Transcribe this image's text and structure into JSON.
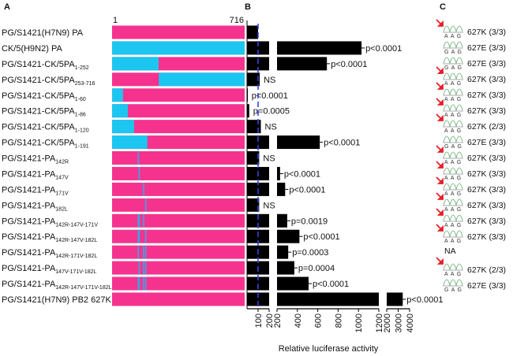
{
  "panels": {
    "a": "A",
    "b": "B",
    "c": "C"
  },
  "colors": {
    "h7n9": "#f5338f",
    "h9n2": "#1cc6f0",
    "mutation": "#4a9be0",
    "bar": "#000000",
    "reference_line": "#3344dd",
    "arrow": "#e8202a"
  },
  "chart_data": {
    "type": "bar",
    "orientation": "horizontal",
    "construct_axis": {
      "start_label": "1",
      "end_label": "716",
      "start": 1,
      "end": 716
    },
    "rows": [
      {
        "label": "PG/S1421(H7N9) PA",
        "sub": "",
        "cyan": [],
        "mutations": [],
        "value": 100,
        "p": ""
      },
      {
        "label": "CK/5(H9N2) PA",
        "sub": "",
        "cyan": [
          [
            1,
            716
          ]
        ],
        "mutations": [],
        "value": 1030,
        "p": "p<0.0001"
      },
      {
        "label": "PG/S1421-CK/5PA",
        "sub": "1-252",
        "cyan": [
          [
            1,
            252
          ]
        ],
        "mutations": [],
        "value": 690,
        "p": "p<0.0001"
      },
      {
        "label": "PG/S1421-CK/5PA",
        "sub": "253-716",
        "cyan": [
          [
            253,
            716
          ]
        ],
        "mutations": [],
        "value": 115,
        "p": "NS"
      },
      {
        "label": "PG/S1421-CK/5PA",
        "sub": "1-60",
        "cyan": [
          [
            1,
            60
          ]
        ],
        "mutations": [],
        "value": 5,
        "p": "p<0.0001"
      },
      {
        "label": "PG/S1421-CK/5PA",
        "sub": "1-86",
        "cyan": [
          [
            1,
            86
          ]
        ],
        "mutations": [],
        "value": 20,
        "p": "p=0.0005"
      },
      {
        "label": "PG/S1421-CK/5PA",
        "sub": "1-120",
        "cyan": [
          [
            1,
            120
          ]
        ],
        "mutations": [],
        "value": 125,
        "p": "NS"
      },
      {
        "label": "PG/S1421-CK/5PA",
        "sub": "1-191",
        "cyan": [
          [
            1,
            191
          ]
        ],
        "mutations": [],
        "value": 620,
        "p": "p<0.0001"
      },
      {
        "label": "PG/S1421-PA",
        "sub": "142R",
        "cyan": [],
        "mutations": [
          142
        ],
        "value": 110,
        "p": "NS"
      },
      {
        "label": "PG/S1421-PA",
        "sub": "147V",
        "cyan": [],
        "mutations": [
          147
        ],
        "value": 230,
        "p": "p<0.0001"
      },
      {
        "label": "PG/S1421-PA",
        "sub": "171V",
        "cyan": [],
        "mutations": [
          171
        ],
        "value": 280,
        "p": "p<0.0001"
      },
      {
        "label": "PG/S1421-PA",
        "sub": "182L",
        "cyan": [],
        "mutations": [
          182
        ],
        "value": 110,
        "p": "NS"
      },
      {
        "label": "PG/S1421-PA",
        "sub": "142R-147V-171V",
        "cyan": [],
        "mutations": [
          142,
          147,
          171
        ],
        "value": 300,
        "p": "p=0.0019"
      },
      {
        "label": "PG/S1421-PA",
        "sub": "142R-147V-182L",
        "cyan": [],
        "mutations": [
          142,
          147,
          182
        ],
        "value": 420,
        "p": "p<0.0001"
      },
      {
        "label": "PG/S1421-PA",
        "sub": "142R-171V-182L",
        "cyan": [],
        "mutations": [
          142,
          171,
          182
        ],
        "value": 310,
        "p": "p=0.0003"
      },
      {
        "label": "PG/S1421-PA",
        "sub": "147V-171V-182L",
        "cyan": [],
        "mutations": [
          147,
          171,
          182
        ],
        "value": 370,
        "p": "p=0.0004"
      },
      {
        "label": "PG/S1421-PA",
        "sub": "142R-147V-171V-182L",
        "cyan": [],
        "mutations": [
          142,
          147,
          171,
          182
        ],
        "value": 510,
        "p": "p<0.0001"
      },
      {
        "label": "PG/S1421(H7N9) PB2 627K",
        "sub": "",
        "cyan": [],
        "mutations": [],
        "value": 3400,
        "p": "p<0.0001"
      }
    ],
    "x_segments": [
      {
        "range": [
          0,
          200
        ],
        "ticks": [
          "100",
          "200"
        ]
      },
      {
        "range": [
          200,
          1200
        ],
        "ticks": [
          "200",
          "400",
          "600",
          "800",
          "1000",
          "1200"
        ]
      },
      {
        "range": [
          2000,
          4000
        ],
        "ticks": [
          "2000",
          "3000",
          "4000"
        ]
      }
    ],
    "reference_value": 100,
    "xlabel": "Relative luciferase activity"
  },
  "sequencing": [
    {
      "codon": "AAG",
      "arrow": true,
      "label": "627K (3/3)"
    },
    {
      "codon": "GAG",
      "arrow": false,
      "label": "627E (3/3)"
    },
    {
      "codon": "GAG",
      "arrow": false,
      "label": "627E (3/3)"
    },
    {
      "codon": "AAG",
      "arrow": true,
      "label": "627K (3/3)"
    },
    {
      "codon": "AAG",
      "arrow": true,
      "label": "627K (3/3)"
    },
    {
      "codon": "AAG",
      "arrow": true,
      "label": "627K (3/3)"
    },
    {
      "codon": "AAG",
      "arrow": true,
      "label": "627K (2/3)"
    },
    {
      "codon": "GAG",
      "arrow": false,
      "label": "627E (3/3)"
    },
    {
      "codon": "AAG",
      "arrow": true,
      "label": "627K (3/3)"
    },
    {
      "codon": "AAG",
      "arrow": true,
      "label": "627K (3/3)"
    },
    {
      "codon": "AAG",
      "arrow": true,
      "label": "627K (3/3)"
    },
    {
      "codon": "AAG",
      "arrow": true,
      "label": "627K (3/3)"
    },
    {
      "codon": "AAG",
      "arrow": true,
      "label": "627K (3/3)"
    },
    {
      "codon": "AAG",
      "arrow": true,
      "label": "627K (3/3)"
    },
    {
      "codon": "",
      "arrow": false,
      "label": "NA"
    },
    {
      "codon": "AAG",
      "arrow": true,
      "label": "627K (2/3)"
    },
    {
      "codon": "GAG",
      "arrow": false,
      "label": "627E (3/3)"
    }
  ]
}
